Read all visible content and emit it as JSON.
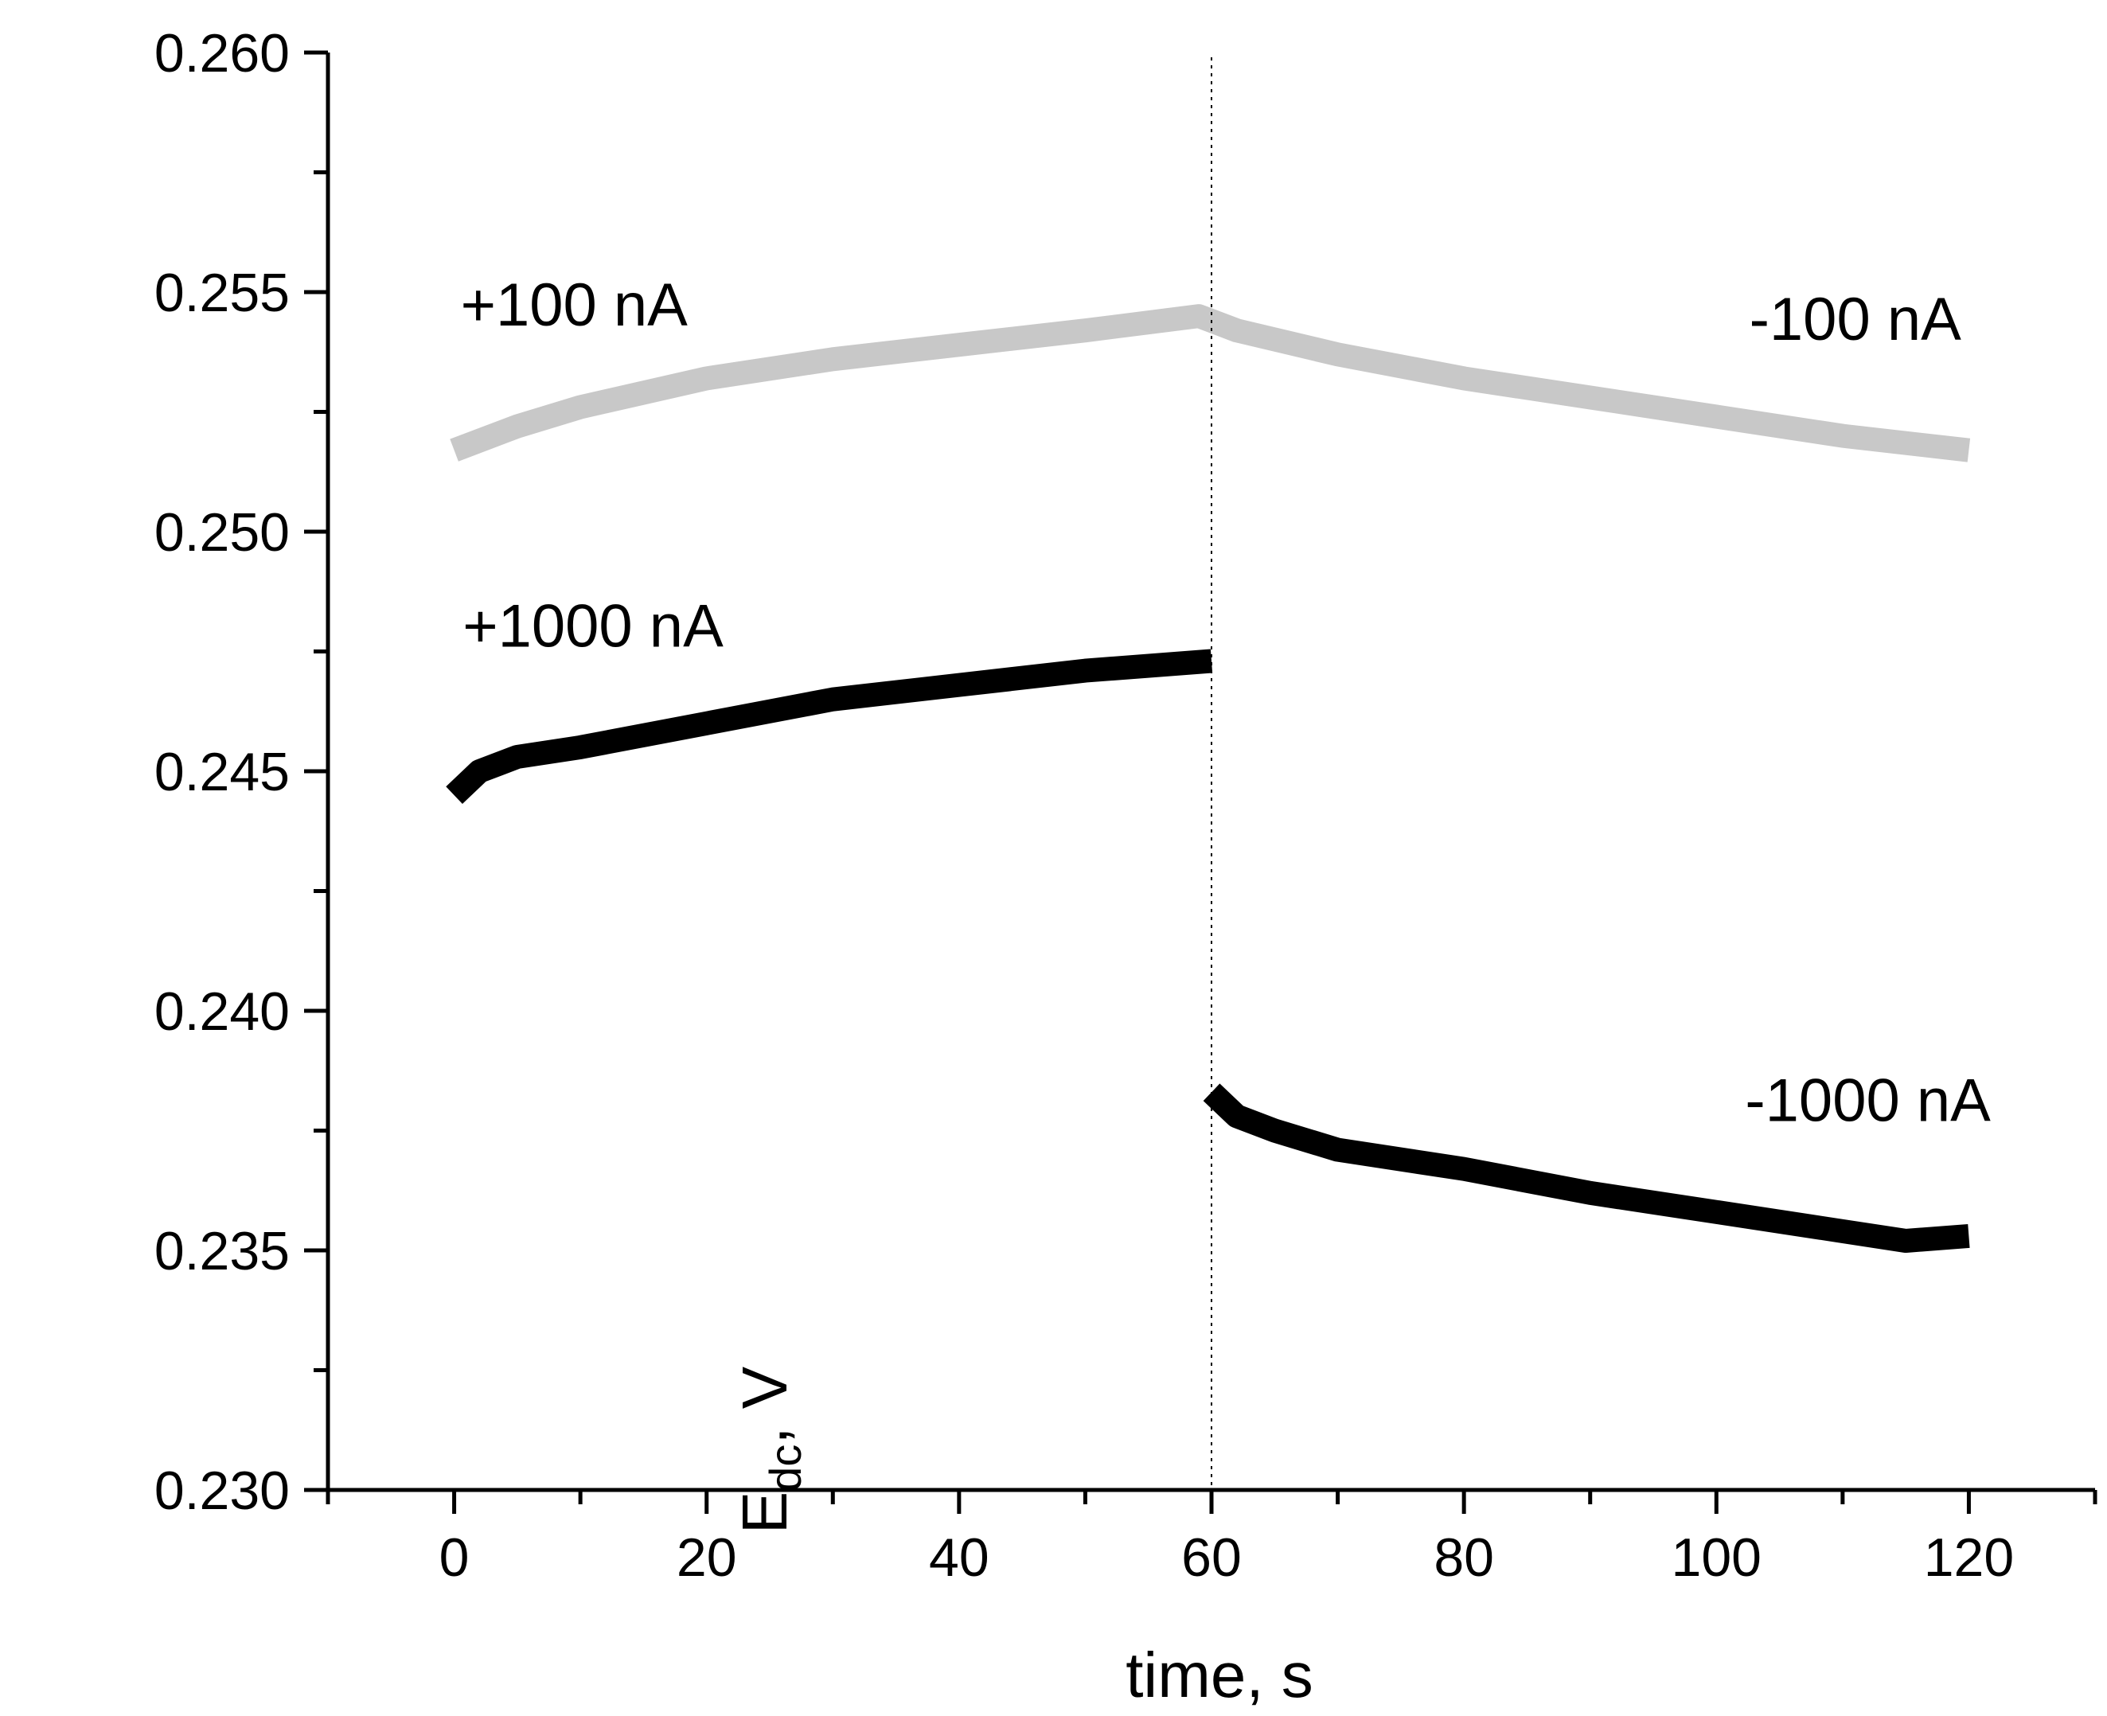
{
  "chart_data": {
    "type": "line",
    "title": "",
    "xlabel": "time, s",
    "ylabel": {
      "main": "E",
      "subscript": "dc",
      "suffix": ", V"
    },
    "xlim": [
      -10,
      130
    ],
    "ylim": [
      0.23,
      0.26
    ],
    "x_ticks": [
      0,
      20,
      40,
      60,
      80,
      100,
      120
    ],
    "x_minor_step": 10,
    "y_ticks": [
      "0.230",
      "0.235",
      "0.240",
      "0.245",
      "0.250",
      "0.255",
      "0.260"
    ],
    "y_minor_step": 0.0025,
    "vline_x": 60,
    "grid": false,
    "series": [
      {
        "name": "+100 nA / -100 nA",
        "color": "#c8c8c8",
        "points": [
          [
            0,
            0.2517
          ],
          [
            5,
            0.2522
          ],
          [
            10,
            0.2526
          ],
          [
            20,
            0.2532
          ],
          [
            30,
            0.2536
          ],
          [
            40,
            0.2539
          ],
          [
            50,
            0.2542
          ],
          [
            59,
            0.2545
          ],
          [
            60,
            0.2544
          ],
          [
            62,
            0.2542
          ],
          [
            70,
            0.2537
          ],
          [
            80,
            0.2532
          ],
          [
            90,
            0.2528
          ],
          [
            100,
            0.2524
          ],
          [
            110,
            0.252
          ],
          [
            120,
            0.2517
          ]
        ]
      },
      {
        "name": "+1000 nA",
        "color": "#000000",
        "points": [
          [
            0,
            0.2445
          ],
          [
            2,
            0.245
          ],
          [
            5,
            0.2453
          ],
          [
            10,
            0.2455
          ],
          [
            20,
            0.246
          ],
          [
            30,
            0.2465
          ],
          [
            40,
            0.2468
          ],
          [
            50,
            0.2471
          ],
          [
            60,
            0.2473
          ]
        ]
      },
      {
        "name": "-1000 nA",
        "color": "#000000",
        "points": [
          [
            60,
            0.2383
          ],
          [
            62,
            0.2378
          ],
          [
            65,
            0.2375
          ],
          [
            70,
            0.2371
          ],
          [
            80,
            0.2367
          ],
          [
            90,
            0.2362
          ],
          [
            100,
            0.2358
          ],
          [
            110,
            0.2354
          ],
          [
            115,
            0.2352
          ],
          [
            120,
            0.2353
          ]
        ]
      }
    ],
    "annotations": [
      {
        "text": "+100 nA",
        "x": 9.5,
        "y": 0.2543
      },
      {
        "text": "-100 nA",
        "x": 111,
        "y": 0.254
      },
      {
        "text": "+1000 nA",
        "x": 11,
        "y": 0.2476
      },
      {
        "text": "-1000 nA",
        "x": 112,
        "y": 0.2377
      }
    ]
  }
}
